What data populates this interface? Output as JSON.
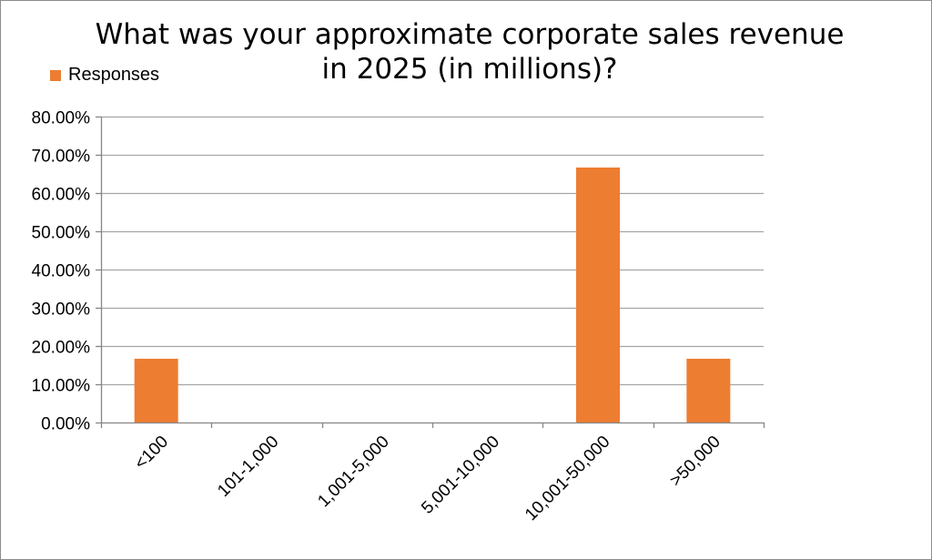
{
  "chart_data": {
    "type": "bar",
    "title": "What was your approximate corporate sales revenue in 2025 (in millions)?",
    "title_lines": [
      "What was your approximate corporate sales revenue",
      "in 2025 (in millions)?"
    ],
    "categories": [
      "<100",
      "101-1,000",
      "1,001-5,000",
      "5,001-10,000",
      "10,001-50,000",
      ">50,000"
    ],
    "series": [
      {
        "name": "Responses",
        "values": [
          16.67,
          0,
          0,
          0,
          66.67,
          16.67
        ],
        "color": "#ED7D31"
      }
    ],
    "yticks": [
      "0.00%",
      "10.00%",
      "20.00%",
      "30.00%",
      "40.00%",
      "50.00%",
      "60.00%",
      "70.00%",
      "80.00%"
    ],
    "ylim": [
      0,
      80
    ],
    "y_unit": "percent",
    "grid": true,
    "legend_position": "top-left",
    "xlabel": "",
    "ylabel": ""
  }
}
